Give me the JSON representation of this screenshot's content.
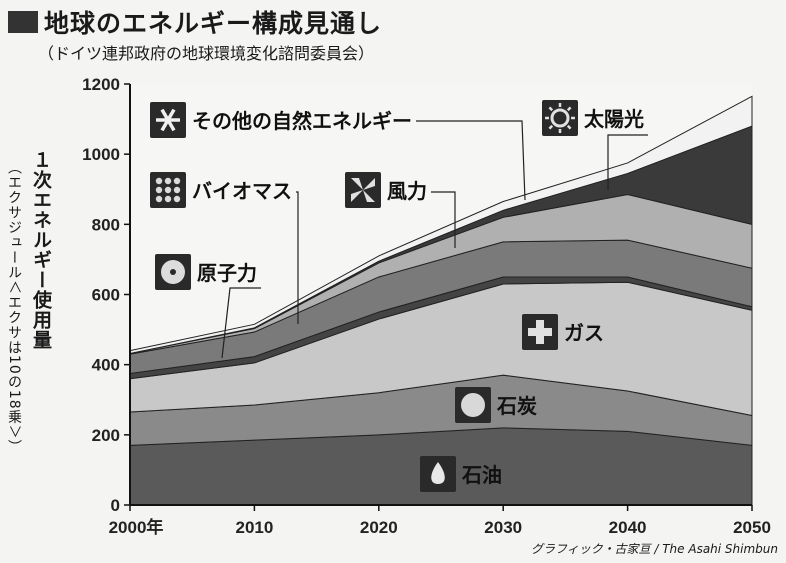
{
  "header": {
    "title": "地球のエネルギー構成見通し",
    "subtitle": "（ドイツ連邦政府の地球環境変化諮問委員会）"
  },
  "credit": "グラフィック・古家亘 / The Asahi Shimbun",
  "chart_data": {
    "type": "area",
    "stacked": true,
    "ylabel": "１次エネルギー使用量",
    "yunit": "（エクサジュール＜エクサは10の18乗＞）",
    "x": [
      2000,
      2010,
      2020,
      2030,
      2040,
      2050
    ],
    "xtick_labels": [
      "2000年",
      "2010",
      "2020",
      "2030",
      "2040",
      "2050"
    ],
    "ylim": [
      0,
      1200
    ],
    "yticks": [
      0,
      200,
      400,
      600,
      800,
      1000,
      1200
    ],
    "grid": false,
    "series": [
      {
        "name": "石油",
        "values": [
          170,
          185,
          200,
          220,
          210,
          170
        ],
        "color": "#5a5a5a"
      },
      {
        "name": "石炭",
        "values": [
          95,
          100,
          120,
          150,
          115,
          85
        ],
        "color": "#8a8a8a"
      },
      {
        "name": "ガス",
        "values": [
          95,
          120,
          210,
          260,
          310,
          300
        ],
        "color": "#c8c8c8"
      },
      {
        "name": "原子力",
        "values": [
          15,
          18,
          20,
          20,
          15,
          10
        ],
        "color": "#444444"
      },
      {
        "name": "バイオマス",
        "values": [
          55,
          70,
          100,
          100,
          105,
          110
        ],
        "color": "#7a7a7a"
      },
      {
        "name": "風力",
        "values": [
          2,
          10,
          40,
          70,
          130,
          125
        ],
        "color": "#b0b0b0"
      },
      {
        "name": "太陽光",
        "values": [
          0,
          2,
          5,
          20,
          60,
          280
        ],
        "color": "#3a3a3a"
      },
      {
        "name": "その他の自然エネルギー",
        "values": [
          8,
          10,
          15,
          25,
          30,
          85
        ],
        "color": "#f2f2f2"
      }
    ]
  }
}
